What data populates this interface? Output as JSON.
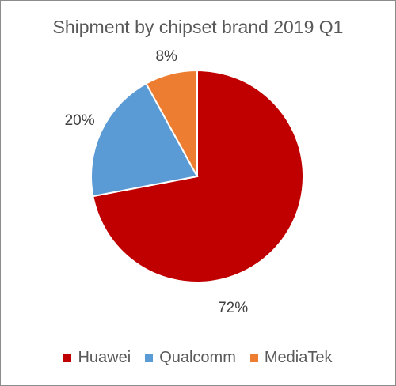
{
  "chart_data": {
    "type": "pie",
    "title": "Shipment by chipset brand 2019 Q1",
    "categories": [
      "Huawei",
      "Qualcomm",
      "MediaTek"
    ],
    "values": [
      72,
      20,
      8
    ],
    "data_labels": [
      "72%",
      "20%",
      "8%"
    ],
    "colors": [
      "#c00000",
      "#5b9bd5",
      "#ed7d31"
    ],
    "legend_position": "bottom",
    "start_angle": "12 o'clock, clockwise"
  }
}
